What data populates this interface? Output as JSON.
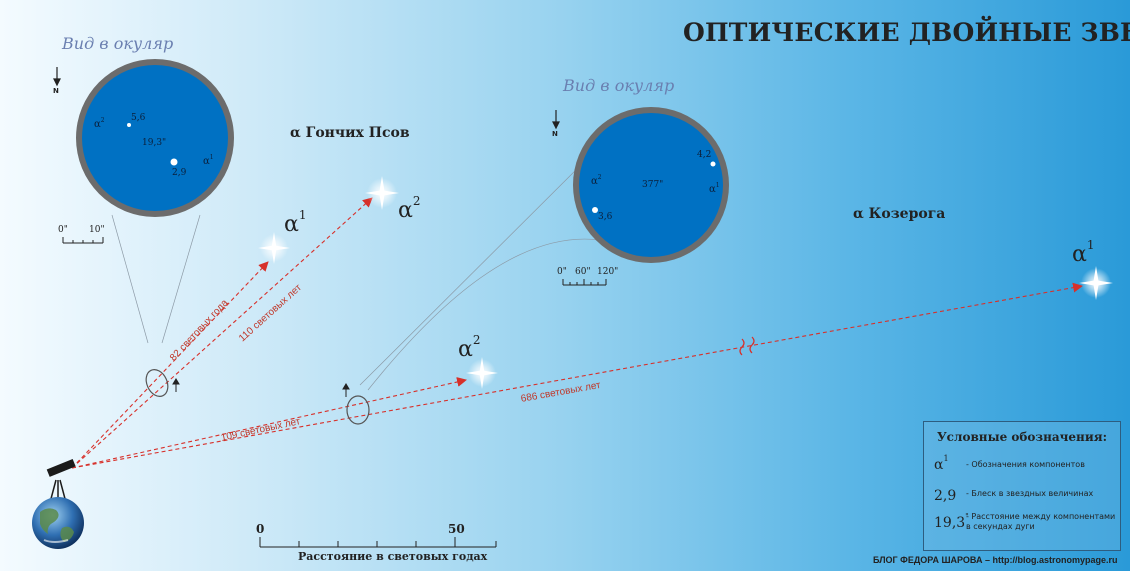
{
  "title": "ОПТИЧЕСКИЕ ДВОЙНЫЕ ЗВЕЗДЫ",
  "colors": {
    "arrow": "#d7302a",
    "eyepiece_field": "#0071c3",
    "eyepiece_rim": "#6c6c6c"
  },
  "left_system": {
    "name": "α Гончих Псов",
    "eyepiece_label": "Вид в окуляр",
    "north_label": "N",
    "field": {
      "alpha_top": "α",
      "alpha_top_sup": "2",
      "mag_top": "5,6",
      "separation": "19,3\"",
      "alpha_bottom": "α",
      "alpha_bottom_sup": "1",
      "mag_bottom": "2,9"
    },
    "scale_ticks": [
      "0\"",
      "10\""
    ],
    "star_a1": {
      "label": "α",
      "sup": "1"
    },
    "star_a2": {
      "label": "α",
      "sup": "2"
    },
    "dist_a1": "82 световых года",
    "dist_a2": "110 световых лет"
  },
  "right_system": {
    "name": "α Козерога",
    "eyepiece_label": "Вид в окуляр",
    "north_label": "N",
    "field": {
      "alpha_left": "α",
      "alpha_left_sup": "2",
      "mag_left": "3,6",
      "separation": "377\"",
      "alpha_right": "α",
      "alpha_right_sup": "1",
      "mag_right": "4,2"
    },
    "scale_ticks": [
      "0\"",
      "60\"",
      "120\""
    ],
    "star_a1": {
      "label": "α",
      "sup": "1"
    },
    "star_a2": {
      "label": "α",
      "sup": "2"
    },
    "dist_a2": "109 световых лет",
    "dist_a1": "686 световых лет"
  },
  "distance_scale": {
    "start": "0",
    "end": "50",
    "label": "Расстояние в световых годах"
  },
  "legend": {
    "title": "Условные обозначения:",
    "items": [
      {
        "symbol": "α",
        "sup": "1",
        "text": "- Обозначения компонентов"
      },
      {
        "symbol": "2,9",
        "sup": "",
        "text": "- Блеск в звездных величинах"
      },
      {
        "symbol": "19,3",
        "sup": "\"",
        "text": "- Расстояние между компонентами в секундах дуги"
      }
    ]
  },
  "footer": "БЛОГ ФЕДОРА ШАРОВА – http://blog.astronomypage.ru",
  "icons": [
    "telescope-icon",
    "earth-icon",
    "star-icon",
    "north-arrow-icon"
  ]
}
